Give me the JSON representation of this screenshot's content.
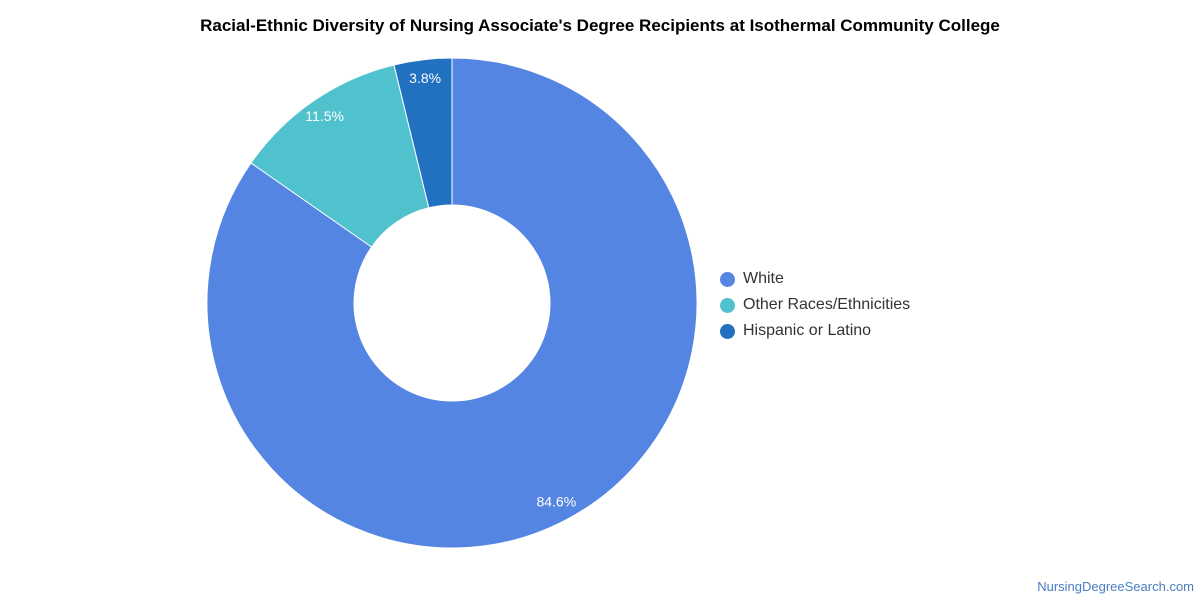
{
  "chart_data": {
    "type": "pie",
    "title": "Racial-Ethnic Diversity of Nursing Associate's Degree Recipients at Isothermal Community College",
    "donut": true,
    "slices": [
      {
        "name": "White",
        "value": 84.6,
        "label": "84.6%",
        "color": "#5585e3"
      },
      {
        "name": "Other Races/Ethnicities",
        "value": 11.5,
        "label": "11.5%",
        "color": "#4fc2cd"
      },
      {
        "name": "Hispanic or Latino",
        "value": 3.8,
        "label": "3.8%",
        "color": "#2171c0"
      }
    ],
    "legend_placement": "right"
  },
  "watermark": "NursingDegreeSearch.com"
}
